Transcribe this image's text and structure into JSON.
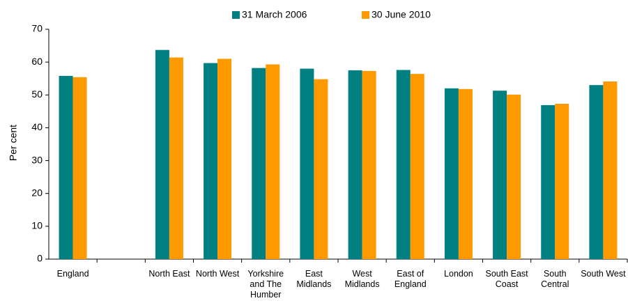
{
  "chart_data": {
    "type": "bar",
    "categories": [
      "England",
      null,
      "North East",
      "North West",
      "Yorkshire and The Humber",
      "East Midlands",
      "West Midlands",
      "East of England",
      "London",
      "South East Coast",
      "South Central",
      "South West"
    ],
    "series": [
      {
        "name": "31 March 2006",
        "color": "#008080",
        "values": [
          55.8,
          null,
          63.7,
          59.7,
          58.2,
          58.0,
          57.5,
          57.6,
          52.0,
          51.3,
          46.9,
          53.0
        ]
      },
      {
        "name": "30 June 2010",
        "color": "#ff9900",
        "values": [
          55.4,
          null,
          61.4,
          61.0,
          59.3,
          54.8,
          57.3,
          56.4,
          51.8,
          50.1,
          47.3,
          54.1
        ]
      }
    ],
    "ylabel": "Per cent",
    "ylim": [
      0,
      70
    ],
    "yticks": [
      0,
      10,
      20,
      30,
      40,
      50,
      60,
      70
    ],
    "grid": false,
    "legend": "top"
  }
}
